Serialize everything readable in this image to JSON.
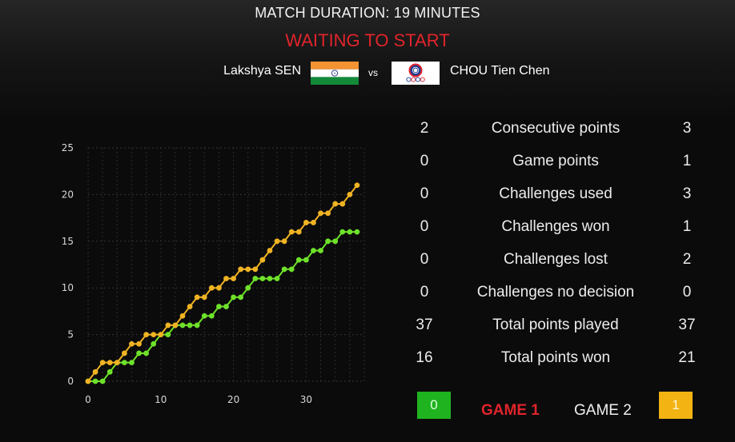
{
  "header": {
    "duration": "MATCH DURATION: 19 MINUTES",
    "status": "WAITING TO START",
    "player_left": "Lakshya SEN",
    "vs": "vs",
    "player_right": "CHOU Tien Chen",
    "flag_left": "india-flag-icon",
    "flag_right": "chinese-taipei-flag-icon"
  },
  "colors": {
    "status": "#e0242b",
    "left_series": "#6ee22a",
    "right_series": "#f0b323",
    "left_score_box": "#1fb41f",
    "right_score_box": "#f2b313"
  },
  "chart_data": {
    "type": "line",
    "x_ticks": [
      "0",
      "10",
      "20",
      "30"
    ],
    "y_ticks": [
      "0",
      "5",
      "10",
      "15",
      "20",
      "25"
    ],
    "xlim": [
      0,
      38
    ],
    "ylim": [
      0,
      25
    ],
    "grid": true,
    "series": [
      {
        "color": "#6ee22a",
        "values": [
          0,
          0,
          0,
          1,
          2,
          2,
          2,
          3,
          3,
          4,
          5,
          5,
          6,
          6,
          6,
          6,
          7,
          7,
          8,
          8,
          9,
          9,
          10,
          11,
          11,
          11,
          11,
          12,
          12,
          13,
          13,
          14,
          14,
          15,
          15,
          16,
          16,
          16
        ]
      },
      {
        "color": "#f0b323",
        "values": [
          0,
          1,
          2,
          2,
          2,
          3,
          4,
          4,
          5,
          5,
          5,
          6,
          6,
          7,
          8,
          9,
          9,
          10,
          10,
          11,
          11,
          12,
          12,
          12,
          13,
          14,
          15,
          15,
          16,
          16,
          17,
          17,
          18,
          18,
          19,
          19,
          20,
          21
        ]
      }
    ]
  },
  "stats": [
    {
      "left": "2",
      "label": "Consecutive points",
      "right": "3"
    },
    {
      "left": "0",
      "label": "Game points",
      "right": "1"
    },
    {
      "left": "0",
      "label": "Challenges used",
      "right": "3"
    },
    {
      "left": "0",
      "label": "Challenges won",
      "right": "1"
    },
    {
      "left": "0",
      "label": "Challenges lost",
      "right": "2"
    },
    {
      "left": "0",
      "label": "Challenges no decision",
      "right": "0"
    },
    {
      "left": "37",
      "label": "Total points played",
      "right": "37"
    },
    {
      "left": "16",
      "label": "Total points won",
      "right": "21"
    }
  ],
  "games": {
    "left_score": "0",
    "game1": "GAME 1",
    "game2": "GAME 2",
    "right_score": "1"
  }
}
